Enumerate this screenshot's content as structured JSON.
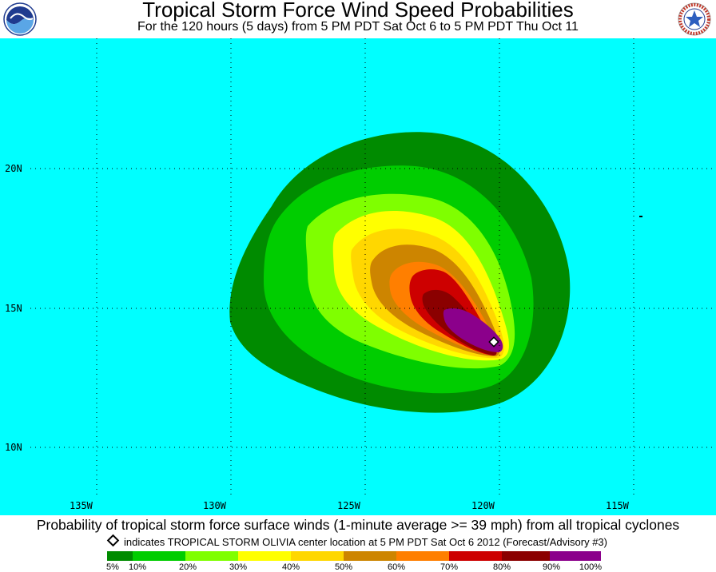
{
  "header": {
    "title": "Tropical Storm Force Wind Speed Probabilities",
    "subtitle": "For the 120 hours (5 days) from 5 PM PDT Sat Oct 6 to 5 PM PDT Thu Oct 11"
  },
  "logos": {
    "left": "noaa-logo",
    "right": "national-weather-service-logo"
  },
  "map": {
    "ocean_color": "#00FFFF",
    "longitude_labels": [
      "135W",
      "130W",
      "125W",
      "120W",
      "115W"
    ],
    "latitude_labels": [
      "20N",
      "15N",
      "10N"
    ],
    "grid": "dotted",
    "storm_center": {
      "lon": -119.5,
      "lat": 13.8,
      "marker": "open-diamond"
    }
  },
  "footer": {
    "caption": "Probability of tropical storm force surface winds (1-minute average >= 39 mph) from all tropical cyclones",
    "note": "indicates TROPICAL STORM OLIVIA center location at 5 PM PDT Sat Oct 6 2012 (Forecast/Advisory #3)"
  },
  "legend": {
    "colors": [
      "#008B00",
      "#00CD00",
      "#7FFF00",
      "#FFFF00",
      "#FFD700",
      "#CD8500",
      "#FF7F00",
      "#CD0000",
      "#8B0000",
      "#8B008B"
    ],
    "labels": [
      "5%",
      "10%",
      "20%",
      "30%",
      "40%",
      "50%",
      "60%",
      "70%",
      "80%",
      "90%",
      "100%"
    ]
  }
}
